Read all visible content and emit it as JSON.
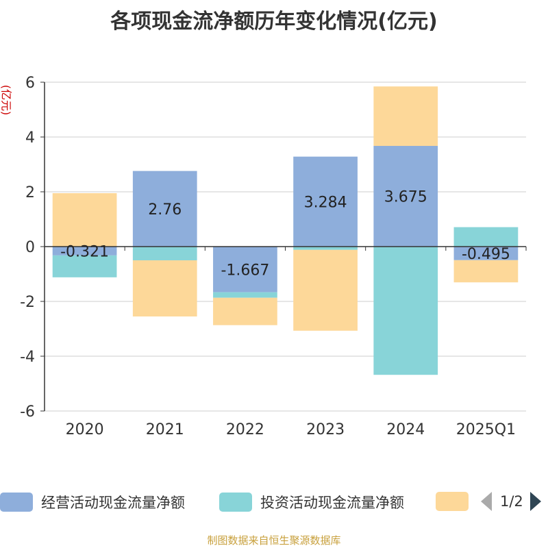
{
  "chart_data": {
    "type": "bar",
    "stacked": true,
    "title": "各项现金流净额历年变化情况(亿元)",
    "ylabel": "(亿元)",
    "ylim": [
      -6,
      6
    ],
    "yticks": [
      6,
      4,
      2,
      0,
      -2,
      -4,
      -6
    ],
    "grid": true,
    "legend_position": "bottom",
    "categories": [
      "2020",
      "2021",
      "2022",
      "2023",
      "2024",
      "2025Q1"
    ],
    "series": [
      {
        "name": "经营活动现金流量净额",
        "color": "#8eaedb",
        "values": [
          -0.321,
          2.76,
          -1.667,
          3.284,
          3.675,
          -0.495
        ],
        "show_labels": true
      },
      {
        "name": "投资活动现金流量净额",
        "color": "#88d4d8",
        "values": [
          -0.8,
          -0.5,
          -0.2,
          -0.12,
          -4.68,
          0.71
        ],
        "show_labels": false
      },
      {
        "name": "",
        "color": "#fdd899",
        "values": [
          1.95,
          -2.05,
          -1.0,
          -2.95,
          2.17,
          -0.81
        ],
        "show_labels": false
      }
    ],
    "data_labels": [
      "-0.321",
      "2.76",
      "-1.667",
      "3.284",
      "3.675",
      "-0.495"
    ]
  },
  "legend": {
    "items": [
      {
        "label": "经营活动现金流量净额",
        "color": "#8eaedb"
      },
      {
        "label": "投资活动现金流量净额",
        "color": "#88d4d8"
      },
      {
        "label": "",
        "color": "#fdd899"
      }
    ],
    "page": "1/2"
  },
  "source": "制图数据来自恒生聚源数据库"
}
